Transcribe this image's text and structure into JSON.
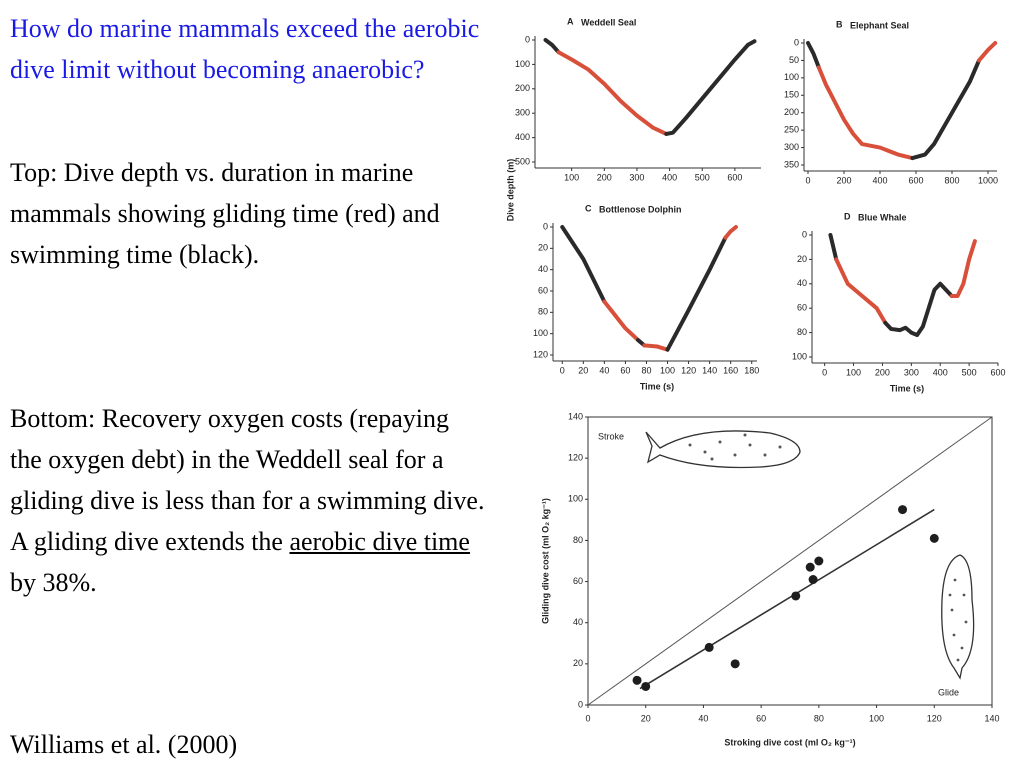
{
  "title": "How do marine mammals exceed the aerobic dive limit without becoming anaerobic?",
  "top_text": "Top: Dive depth vs. duration in marine mammals showing gliding time (red) and swimming time (black).",
  "bottom_text": {
    "before": "Bottom:  Recovery oxygen costs (repaying the oxygen debt) in the Weddell seal for a gliding dive is less than for a swimming dive.  A gliding dive extends the ",
    "link": "aerobic dive time",
    "after": " by 38%."
  },
  "citation": "Williams et al. (2000)",
  "chart_data": [
    {
      "type": "line",
      "panel": "A",
      "title": "Weddell Seal",
      "ylabel": "Dive depth (m)",
      "y_inverted": true,
      "xlim": [
        0,
        680
      ],
      "xticks": [
        100,
        200,
        300,
        400,
        500,
        600
      ],
      "ylim": [
        0,
        500
      ],
      "yticks": [
        0,
        100,
        200,
        300,
        400,
        500
      ],
      "series": [
        {
          "color": "#2a2a2a",
          "x": [
            20,
            40,
            60
          ],
          "values": [
            0,
            20,
            50
          ]
        },
        {
          "color": "#d9503a",
          "x": [
            60,
            100,
            150,
            200,
            250,
            300,
            350,
            390
          ],
          "values": [
            50,
            80,
            120,
            180,
            250,
            310,
            360,
            385
          ]
        },
        {
          "color": "#2a2a2a",
          "x": [
            390,
            410,
            450,
            500,
            550,
            600,
            640,
            660
          ],
          "values": [
            385,
            380,
            320,
            240,
            160,
            80,
            20,
            5
          ]
        }
      ]
    },
    {
      "type": "line",
      "panel": "B",
      "title": "Elephant Seal",
      "y_inverted": true,
      "xlim": [
        0,
        1050
      ],
      "xticks": [
        0,
        200,
        400,
        600,
        800,
        1000
      ],
      "ylim": [
        0,
        350
      ],
      "yticks": [
        0,
        50,
        100,
        150,
        200,
        250,
        300,
        350
      ],
      "series": [
        {
          "color": "#2a2a2a",
          "x": [
            0,
            30,
            60
          ],
          "values": [
            0,
            30,
            70
          ]
        },
        {
          "color": "#d9503a",
          "x": [
            60,
            100,
            150,
            200,
            250,
            300,
            400,
            500,
            580
          ],
          "values": [
            70,
            120,
            170,
            220,
            260,
            290,
            300,
            320,
            330
          ]
        },
        {
          "color": "#2a2a2a",
          "x": [
            580,
            650,
            700,
            800,
            900,
            950
          ],
          "values": [
            330,
            320,
            290,
            200,
            110,
            50
          ]
        },
        {
          "color": "#d9503a",
          "x": [
            950,
            1000,
            1040
          ],
          "values": [
            50,
            20,
            0
          ]
        }
      ]
    },
    {
      "type": "line",
      "panel": "C",
      "title": "Bottlenose Dolphin",
      "xlabel": "Time (s)",
      "y_inverted": true,
      "xlim": [
        -5,
        185
      ],
      "xticks": [
        0,
        20,
        40,
        60,
        80,
        100,
        120,
        140,
        160,
        180
      ],
      "ylim": [
        0,
        120
      ],
      "yticks": [
        0,
        20,
        40,
        60,
        80,
        100,
        120
      ],
      "series": [
        {
          "color": "#2a2a2a",
          "x": [
            0,
            20,
            40
          ],
          "values": [
            0,
            30,
            70
          ]
        },
        {
          "color": "#d9503a",
          "x": [
            40,
            60,
            72
          ],
          "values": [
            70,
            95,
            106
          ]
        },
        {
          "color": "#2a2a2a",
          "x": [
            72,
            78
          ],
          "values": [
            106,
            111
          ]
        },
        {
          "color": "#d9503a",
          "x": [
            78,
            90,
            100
          ],
          "values": [
            111,
            112,
            115
          ]
        },
        {
          "color": "#2a2a2a",
          "x": [
            100,
            120,
            140,
            155
          ],
          "values": [
            115,
            78,
            40,
            10
          ]
        },
        {
          "color": "#d9503a",
          "x": [
            155,
            160,
            165
          ],
          "values": [
            10,
            4,
            0
          ]
        }
      ]
    },
    {
      "type": "line",
      "panel": "D",
      "title": "Blue Whale",
      "xlabel": "Time (s)",
      "y_inverted": true,
      "xlim": [
        -30,
        600
      ],
      "xticks": [
        0,
        100,
        200,
        300,
        400,
        500,
        600
      ],
      "ylim": [
        0,
        100
      ],
      "yticks": [
        0,
        20,
        40,
        60,
        80,
        100
      ],
      "series": [
        {
          "color": "#2a2a2a",
          "x": [
            20,
            30,
            40
          ],
          "values": [
            0,
            10,
            20
          ]
        },
        {
          "color": "#d9503a",
          "x": [
            40,
            80,
            130,
            180,
            210
          ],
          "values": [
            20,
            40,
            50,
            60,
            72
          ]
        },
        {
          "color": "#2a2a2a",
          "x": [
            210,
            230,
            260,
            280,
            300,
            320,
            340,
            360,
            380,
            400,
            420,
            440
          ],
          "values": [
            72,
            77,
            78,
            76,
            80,
            82,
            75,
            60,
            45,
            40,
            45,
            50
          ]
        },
        {
          "color": "#d9503a",
          "x": [
            440,
            460,
            480,
            500,
            520
          ],
          "values": [
            50,
            50,
            40,
            20,
            5
          ]
        }
      ]
    },
    {
      "type": "scatter",
      "xlabel": "Stroking dive cost (ml O₂ kg⁻¹)",
      "ylabel": "Gliding dive cost (ml O₂ kg⁻¹)",
      "xlim": [
        0,
        140
      ],
      "xticks": [
        0,
        20,
        40,
        60,
        80,
        100,
        120,
        140
      ],
      "ylim": [
        0,
        140
      ],
      "yticks": [
        0,
        20,
        40,
        60,
        80,
        100,
        120,
        140
      ],
      "color": "#1e1e1e",
      "x": [
        17,
        20,
        42,
        51,
        72,
        77,
        78,
        80,
        109,
        120
      ],
      "values": [
        12,
        9,
        28,
        20,
        53,
        67,
        61,
        70,
        95,
        81
      ],
      "fit_line": {
        "x": [
          18,
          120
        ],
        "y": [
          8,
          95
        ]
      },
      "annotations": [
        "Stroke",
        "Glide"
      ]
    }
  ]
}
